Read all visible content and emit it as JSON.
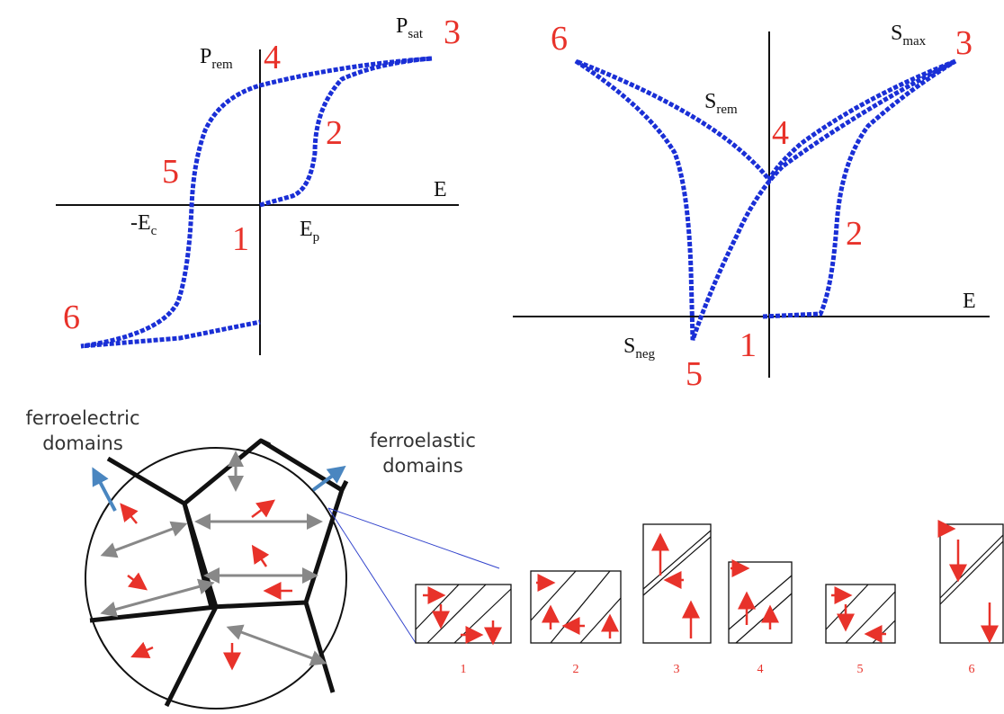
{
  "left_plot": {
    "p_rem": {
      "main": "P",
      "sub": "rem"
    },
    "p_sat": {
      "main": "P",
      "sub": "sat"
    },
    "axis_label": "E",
    "neg_ec": {
      "main": "-E",
      "sub": "c"
    },
    "ep": {
      "main": "E",
      "sub": "p"
    },
    "stages": [
      "1",
      "2",
      "3",
      "4",
      "5",
      "6"
    ]
  },
  "right_plot": {
    "s_max": {
      "main": "S",
      "sub": "max"
    },
    "s_rem": {
      "main": "S",
      "sub": "rem"
    },
    "axis_label": "E",
    "s_neg": {
      "main": "S",
      "sub": "neg"
    },
    "stages": [
      "1",
      "2",
      "3",
      "4",
      "5",
      "6"
    ]
  },
  "domains": {
    "ferroelectric": [
      "ferroelectric",
      "domains"
    ],
    "ferroelastic": [
      "ferroelastic",
      "domains"
    ],
    "box_labels": [
      "1",
      "2",
      "3",
      "4",
      "5",
      "6"
    ]
  }
}
